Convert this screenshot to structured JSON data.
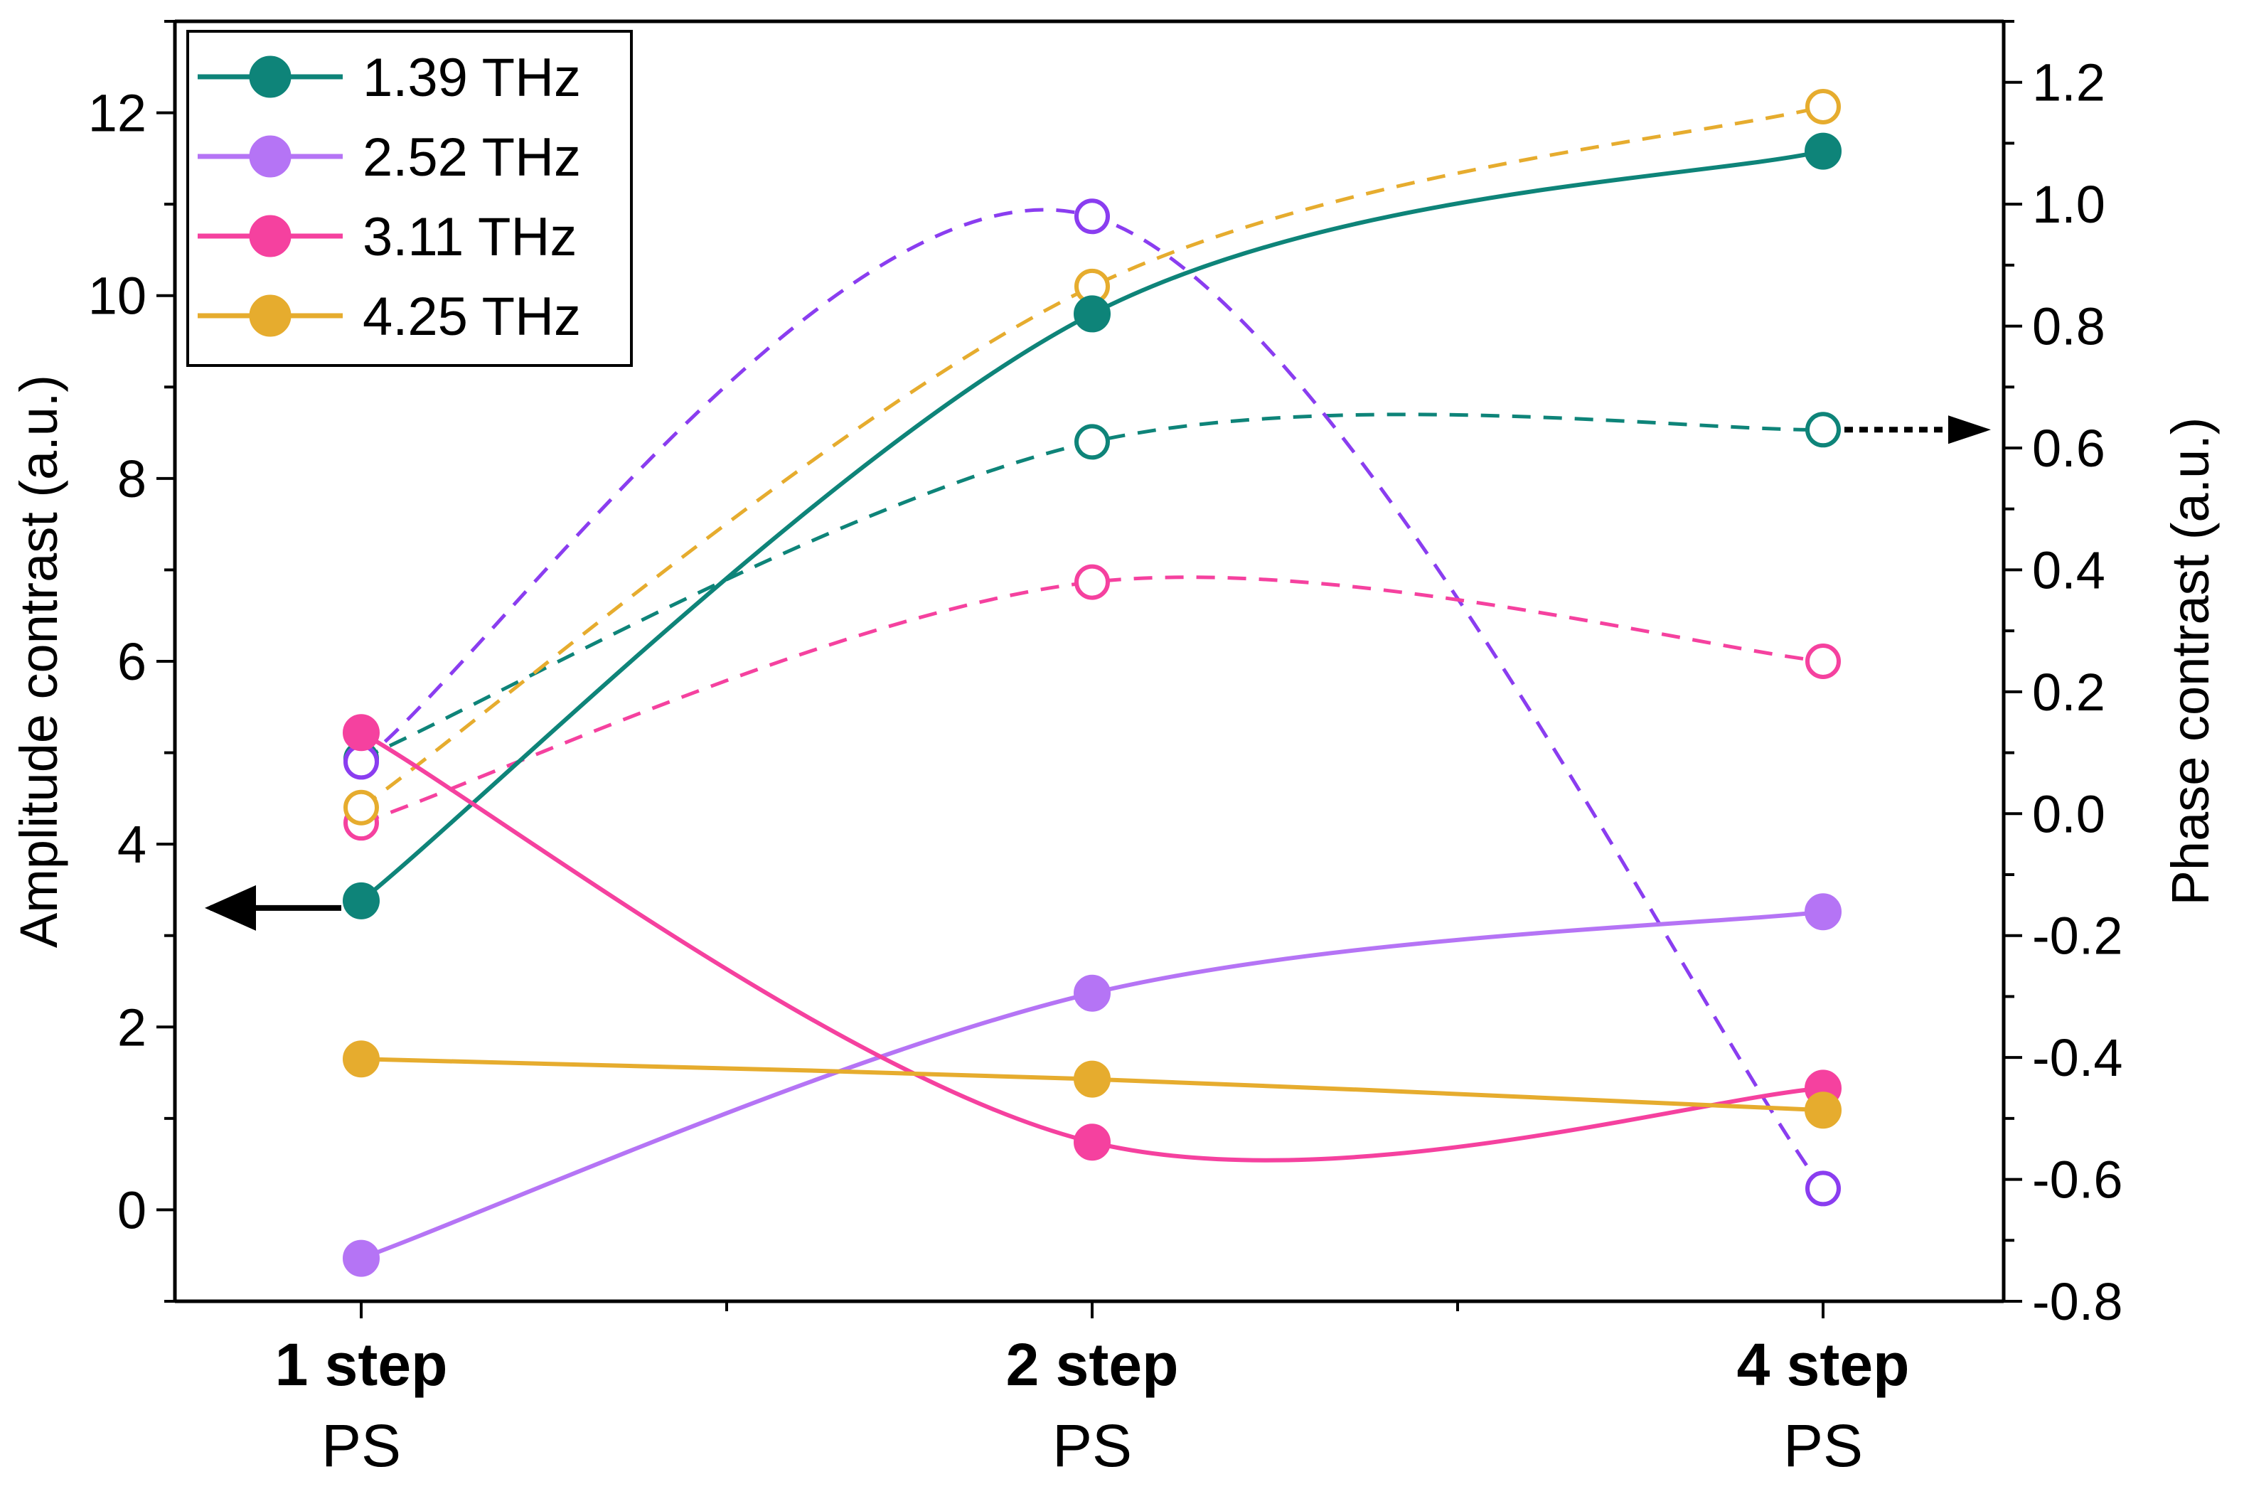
{
  "chart_data": {
    "type": "line",
    "title": "",
    "categories": [
      {
        "main": "1 step",
        "sub": "PS"
      },
      {
        "main": "2 step",
        "sub": "PS"
      },
      {
        "main": "4 step",
        "sub": "PS"
      }
    ],
    "ylabel_left": "Amplitude contrast (a.u.)",
    "ylabel_right": "Phase contrast (a.u.)",
    "ylim_left": [
      -1,
      13
    ],
    "ylim_right": [
      -0.8,
      1.3
    ],
    "yticks_left": [
      "0",
      "2",
      "4",
      "6",
      "8",
      "10",
      "12"
    ],
    "yticks_right": [
      "-0.8",
      "-0.6",
      "-0.4",
      "-0.2",
      "0.0",
      "0.2",
      "0.4",
      "0.6",
      "0.8",
      "1.0",
      "1.2"
    ],
    "legend": {
      "placement": "top-left"
    },
    "series": [
      {
        "name": "1.39 THz",
        "color": "#0e8479",
        "amplitude": [
          3.38,
          9.8,
          11.58
        ],
        "phase": [
          0.09,
          0.61,
          0.63
        ]
      },
      {
        "name": "2.52 THz",
        "color": "#b574f5",
        "amplitude": [
          -0.53,
          2.37,
          3.26
        ],
        "phase": [
          0.085,
          0.98,
          -0.615
        ]
      },
      {
        "name": "3.11 THz",
        "color": "#f5419f",
        "amplitude": [
          5.22,
          0.74,
          1.33
        ],
        "phase": [
          -0.015,
          0.38,
          0.25
        ]
      },
      {
        "name": "4.25 THz",
        "color": "#e6ac2e",
        "amplitude": [
          1.65,
          1.43,
          1.09
        ],
        "phase": [
          0.01,
          0.865,
          1.16
        ]
      }
    ],
    "phase_line_color": "#8a3df0",
    "annotations": [
      {
        "type": "arrow",
        "style": "solid",
        "direction": "left",
        "meaning": "amplitude data refers to left axis"
      },
      {
        "type": "arrow",
        "style": "dotted",
        "direction": "right",
        "meaning": "phase data refers to right axis"
      }
    ]
  }
}
